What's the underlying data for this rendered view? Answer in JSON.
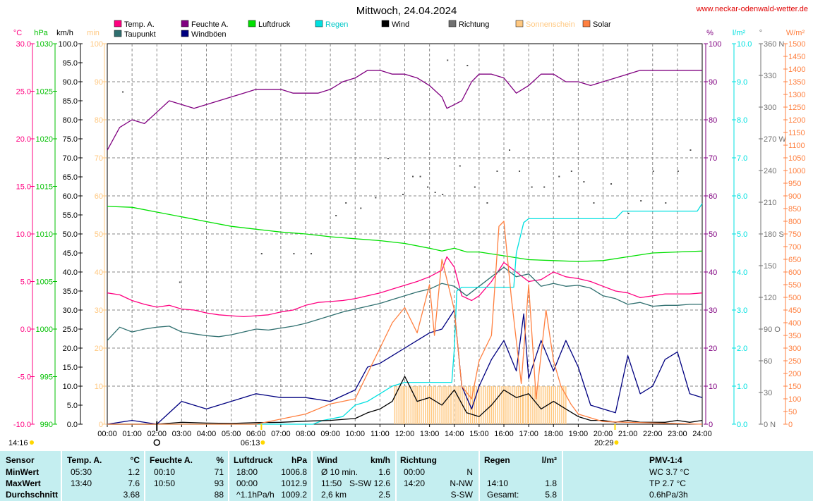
{
  "title": "Mittwoch, 24.04.2024",
  "site": "www.neckar-odenwald-wetter.de",
  "axis_units": {
    "temp": "°C",
    "pressure": "hPa",
    "wind": "km/h",
    "sun": "min",
    "humidity": "%",
    "rain": "l/m²",
    "direction": "°",
    "solar": "W/m²"
  },
  "legend": [
    {
      "label": "Temp. A.",
      "color": "#ff0080"
    },
    {
      "label": "Taupunkt",
      "color": "#2f6f6f"
    },
    {
      "label": "Feuchte A.",
      "color": "#800080"
    },
    {
      "label": "Windböen",
      "color": "#000080"
    },
    {
      "label": "Luftdruck",
      "color": "#00e000"
    },
    {
      "label": "Regen",
      "color": "#00e0e0"
    },
    {
      "label": "Wind",
      "color": "#000000"
    },
    {
      "label": "Richtung",
      "color": "#707070"
    },
    {
      "label": "Sonnenschein",
      "color": "#ffc880"
    },
    {
      "label": "Solar",
      "color": "#ff8040"
    }
  ],
  "sun": {
    "sunrise": "06:13",
    "sunset": "20:29",
    "sunshine_duration": "14:16"
  },
  "chart_data": {
    "type": "line",
    "title": "Mittwoch, 24.04.2024",
    "x_ticks": [
      "00:00",
      "01:00",
      "02:00",
      "03:00",
      "04:00",
      "05:00",
      "06:00",
      "07:00",
      "08:00",
      "09:00",
      "10:00",
      "11:00",
      "12:00",
      "13:00",
      "14:00",
      "15:00",
      "16:00",
      "17:00",
      "18:00",
      "19:00",
      "20:00",
      "21:00",
      "22:00",
      "23:00",
      "24:00"
    ],
    "axes": {
      "temp": {
        "min": -10,
        "max": 30,
        "ticks": [
          "-10.0",
          "-5.0",
          "0.0",
          "5.0",
          "10.0",
          "15.0",
          "20.0",
          "25.0",
          "30.0"
        ]
      },
      "pressure": {
        "min": 990,
        "max": 1030,
        "ticks": [
          "990",
          "995",
          "1000",
          "1005",
          "1010",
          "1015",
          "1020",
          "1025",
          "1030"
        ]
      },
      "wind": {
        "min": 0,
        "max": 100,
        "ticks": [
          "0.0",
          "5.0",
          "10.0",
          "15.0",
          "20.0",
          "25.0",
          "30.0",
          "35.0",
          "40.0",
          "45.0",
          "50.0",
          "55.0",
          "60.0",
          "65.0",
          "70.0",
          "75.0",
          "80.0",
          "85.0",
          "90.0",
          "95.0",
          "100.0"
        ]
      },
      "sun": {
        "min": 0,
        "max": 100,
        "ticks": [
          "0",
          "10",
          "20",
          "30",
          "40",
          "50",
          "60",
          "70",
          "80",
          "90",
          "100"
        ]
      },
      "humidity": {
        "min": 0,
        "max": 100,
        "ticks": [
          "0",
          "10",
          "20",
          "30",
          "40",
          "50",
          "60",
          "70",
          "80",
          "90",
          "100"
        ]
      },
      "rain": {
        "min": 0,
        "max": 10,
        "ticks": [
          "0.0",
          "1.0",
          "2.0",
          "3.0",
          "4.0",
          "5.0",
          "6.0",
          "7.0",
          "8.0",
          "9.0",
          "10.0"
        ]
      },
      "direction": {
        "min": 0,
        "max": 360,
        "ticks": [
          "0 N",
          "30",
          "60",
          "90 O",
          "120",
          "150",
          "180 S",
          "210",
          "240",
          "270 W",
          "300",
          "330",
          "360 N"
        ]
      },
      "solar": {
        "min": 0,
        "max": 1500,
        "ticks": [
          "0",
          "50",
          "100",
          "150",
          "200",
          "250",
          "300",
          "350",
          "400",
          "450",
          "500",
          "550",
          "600",
          "650",
          "700",
          "750",
          "800",
          "850",
          "900",
          "950",
          "1000",
          "1050",
          "1100",
          "1150",
          "1200",
          "1250",
          "1300",
          "1350",
          "1400",
          "1450",
          "1500"
        ]
      }
    },
    "series": [
      {
        "name": "Temp. A.",
        "axis": "temp",
        "x": [
          0,
          0.5,
          1,
          1.5,
          2,
          2.5,
          3,
          3.5,
          4,
          4.5,
          5,
          5.5,
          6,
          6.5,
          7,
          7.5,
          8,
          8.5,
          9,
          9.5,
          10,
          10.5,
          11,
          11.5,
          12,
          12.5,
          13,
          13.5,
          13.7,
          14,
          14.3,
          14.7,
          15,
          15.5,
          16,
          16.5,
          17,
          17.5,
          18,
          18.5,
          19,
          19.5,
          20,
          20.5,
          21,
          21.5,
          22,
          22.5,
          23,
          23.5,
          24
        ],
        "y": [
          3.8,
          3.6,
          3.0,
          2.6,
          2.3,
          2.5,
          2.1,
          2.0,
          1.7,
          1.5,
          1.4,
          1.3,
          1.4,
          1.5,
          1.8,
          2.0,
          2.5,
          2.8,
          2.9,
          3.0,
          3.2,
          3.5,
          3.8,
          4.2,
          4.6,
          5.0,
          5.5,
          6.2,
          7.6,
          6.5,
          3.5,
          3.0,
          3.5,
          5.0,
          7.0,
          6.0,
          5.0,
          5.2,
          6.0,
          5.5,
          5.3,
          5.0,
          4.5,
          4.0,
          3.8,
          3.3,
          3.5,
          3.7,
          3.7,
          3.7,
          3.8
        ]
      },
      {
        "name": "Taupunkt",
        "axis": "temp",
        "x": [
          0,
          0.5,
          1,
          1.5,
          2,
          2.5,
          3,
          3.5,
          4,
          4.5,
          5,
          5.5,
          6,
          6.5,
          7,
          7.5,
          8,
          8.5,
          9,
          9.5,
          10,
          10.5,
          11,
          11.5,
          12,
          12.5,
          13,
          13.5,
          14,
          14.5,
          15,
          15.5,
          16,
          16.5,
          17,
          17.5,
          18,
          18.5,
          19,
          19.5,
          20,
          20.5,
          21,
          21.5,
          22,
          22.5,
          23,
          23.5,
          24
        ],
        "y": [
          -1.2,
          0.2,
          -0.3,
          0.0,
          0.2,
          0.3,
          -0.3,
          -0.5,
          -0.7,
          -0.8,
          -0.6,
          -0.3,
          0.0,
          -0.1,
          0.1,
          0.3,
          0.6,
          1.0,
          1.4,
          1.8,
          2.1,
          2.4,
          2.7,
          3.1,
          3.5,
          3.9,
          4.2,
          4.8,
          4.5,
          3.5,
          4.5,
          5.5,
          6.5,
          5.5,
          5.8,
          4.5,
          4.8,
          4.5,
          4.6,
          4.3,
          3.5,
          3.2,
          2.6,
          2.8,
          2.4,
          2.5,
          2.5,
          2.6,
          2.6
        ]
      },
      {
        "name": "Feuchte A.",
        "axis": "humidity",
        "x": [
          0,
          0.5,
          1,
          1.5,
          2,
          2.5,
          3,
          3.5,
          4,
          4.5,
          5,
          5.5,
          6,
          6.5,
          7,
          7.5,
          8,
          8.5,
          9,
          9.5,
          10,
          10.5,
          11,
          11.5,
          12,
          12.5,
          13,
          13.5,
          13.7,
          14,
          14.3,
          14.7,
          15,
          15.5,
          16,
          16.5,
          17,
          17.5,
          18,
          18.5,
          19,
          19.5,
          20,
          20.5,
          21,
          21.5,
          22,
          22.5,
          23,
          23.5,
          24
        ],
        "y": [
          72,
          78,
          80,
          79,
          82,
          85,
          84,
          83,
          84,
          85,
          86,
          87,
          88,
          88,
          88,
          87,
          87,
          87,
          88,
          90,
          91,
          93,
          93,
          92,
          92,
          91,
          89,
          86,
          83,
          84,
          85,
          90,
          92,
          92,
          91,
          87,
          89,
          92,
          92,
          90,
          90,
          89,
          90,
          91,
          92,
          93,
          93,
          93,
          93,
          93,
          93
        ]
      },
      {
        "name": "Luftdruck",
        "axis": "pressure",
        "x": [
          0,
          1,
          2,
          3,
          4,
          5,
          6,
          7,
          8,
          9,
          10,
          11,
          12,
          13,
          13.5,
          14,
          14.5,
          15,
          16,
          17,
          18,
          19,
          20,
          21,
          22,
          23,
          24
        ],
        "y": [
          1012.9,
          1012.8,
          1012.3,
          1011.8,
          1011.3,
          1010.8,
          1010.5,
          1010.2,
          1010.0,
          1009.7,
          1009.5,
          1009.3,
          1009.0,
          1008.5,
          1008.2,
          1008.5,
          1008.1,
          1008.1,
          1007.7,
          1007.3,
          1007.2,
          1007.1,
          1007.2,
          1007.6,
          1008.0,
          1008.1,
          1008.2
        ]
      },
      {
        "name": "Regen",
        "axis": "rain",
        "x": [
          0,
          8.3,
          8.7,
          9.5,
          10,
          10.5,
          11,
          11.5,
          12,
          13,
          13.9,
          14,
          14.1,
          14.3,
          15,
          16.4,
          16.5,
          16.8,
          17,
          18,
          19,
          20,
          20.5,
          20.8,
          21,
          22,
          23,
          23.8,
          24
        ],
        "y": [
          0,
          0,
          0.1,
          0.2,
          0.5,
          0.6,
          0.8,
          1.0,
          1.1,
          1.1,
          1.1,
          2.0,
          3.5,
          3.6,
          3.6,
          3.6,
          4.5,
          5.3,
          5.4,
          5.4,
          5.4,
          5.4,
          5.4,
          5.6,
          5.6,
          5.6,
          5.6,
          5.6,
          5.8
        ]
      },
      {
        "name": "Wind",
        "axis": "wind",
        "x": [
          0,
          1,
          2,
          3,
          4,
          5,
          6,
          7,
          8,
          9,
          10,
          10.5,
          11,
          11.5,
          12,
          12.5,
          13,
          13.5,
          14,
          14.5,
          15,
          15.5,
          16,
          16.5,
          17,
          17.5,
          18,
          18.5,
          19,
          19.5,
          20,
          20.5,
          21,
          21.5,
          22,
          22.5,
          23,
          23.5,
          24
        ],
        "y": [
          0,
          0,
          0,
          0.5,
          0.3,
          0.2,
          0.4,
          0.5,
          0.8,
          1.0,
          1.5,
          3.0,
          4.0,
          6.0,
          12.6,
          6.0,
          7.0,
          5.0,
          9.0,
          3.0,
          2.0,
          5.0,
          9.0,
          7.0,
          8.0,
          4.0,
          6.0,
          4.0,
          2.0,
          1.0,
          1.0,
          0.5,
          1.0,
          0.5,
          0.5,
          0.5,
          1.0,
          0.5,
          1.0
        ]
      },
      {
        "name": "Windböen",
        "axis": "wind",
        "x": [
          0,
          1,
          2,
          3,
          4,
          5,
          6,
          7,
          8,
          9,
          10,
          10.5,
          11,
          11.5,
          12,
          12.5,
          13,
          13.5,
          14,
          14.3,
          14.7,
          15,
          15.5,
          16,
          16.5,
          16.8,
          17,
          17.5,
          18,
          18.5,
          19,
          19.5,
          20,
          20.5,
          21,
          21.5,
          22,
          22.5,
          23,
          23.5,
          24
        ],
        "y": [
          0,
          1,
          0,
          6,
          4,
          6,
          8,
          7,
          7,
          6,
          9,
          15,
          16,
          18,
          20,
          22,
          24,
          25,
          30,
          10,
          4,
          10,
          17,
          22,
          14,
          29,
          12,
          22,
          14,
          22,
          15,
          5,
          4,
          3,
          18,
          8,
          10,
          17,
          19,
          8,
          7
        ]
      },
      {
        "name": "Solar",
        "axis": "solar",
        "x": [
          0,
          6,
          7,
          8,
          9,
          10,
          10.5,
          11,
          11.5,
          12,
          12.5,
          13,
          13.2,
          13.5,
          14,
          14.3,
          14.7,
          15,
          15.5,
          15.8,
          16,
          16.3,
          16.7,
          17,
          17.3,
          17.7,
          18,
          18.3,
          18.7,
          19,
          20,
          24
        ],
        "y": [
          0,
          0,
          20,
          40,
          80,
          100,
          200,
          300,
          400,
          460,
          360,
          550,
          350,
          650,
          450,
          150,
          100,
          250,
          350,
          780,
          800,
          500,
          160,
          550,
          100,
          450,
          250,
          150,
          80,
          40,
          10,
          0
        ]
      },
      {
        "name": "Sonnenschein",
        "axis": "sun",
        "x": [
          11.6,
          12,
          12.5,
          13,
          13.5,
          13.9,
          15,
          15.5,
          16,
          16.5,
          16.8,
          17,
          17.5,
          18,
          18.5
        ],
        "y": [
          10,
          10,
          10,
          10,
          10,
          10,
          10,
          10,
          10,
          10,
          10,
          10,
          10,
          10,
          10
        ]
      },
      {
        "name": "Richtung",
        "axis": "direction",
        "x": [
          0.6,
          2.9,
          6.2,
          7.5,
          8.2,
          9.2,
          9.6,
          10.2,
          10.8,
          11.3,
          11.9,
          12.3,
          12.6,
          12.9,
          13.2,
          13.5,
          13.7,
          14.2,
          14.5,
          14.8,
          15.3,
          15.7,
          16.2,
          16.6,
          17.1,
          17.6,
          18.2,
          18.7,
          19.2,
          19.6,
          20.3,
          21.0,
          21.5,
          22.0,
          22.5,
          23.0,
          23.5
        ],
        "y": [
          315,
          135,
          162,
          162,
          162,
          198,
          210,
          205,
          215,
          252,
          218,
          235,
          235,
          225,
          220,
          218,
          345,
          245,
          340,
          225,
          210,
          240,
          260,
          240,
          225,
          225,
          235,
          240,
          230,
          210,
          228,
          200,
          212,
          240,
          210,
          240,
          260
        ]
      }
    ]
  },
  "table": {
    "headers": {
      "sensor": "Sensor",
      "temp": "Temp. A.",
      "temp_unit": "°C",
      "hum": "Feuchte A.",
      "hum_unit": "%",
      "press": "Luftdruck",
      "press_unit": "hPa",
      "wind": "Wind",
      "wind_unit": "km/h",
      "dir": "Richtung",
      "rain": "Regen",
      "rain_unit": "l/m²",
      "pmv": "PMV-1:4"
    },
    "rows": [
      {
        "label": "MinWert",
        "t_time": "05:30",
        "t_val": "1.2",
        "h_time": "00:10",
        "h_val": "71",
        "p_time": "18:00",
        "p_val": "1006.8",
        "w_time": "Ø 10 min.",
        "w_val": "1.6",
        "d_time": "00:00",
        "d_val": "N",
        "r_time": "",
        "r_val": "",
        "pmv": "WC 3.7 °C"
      },
      {
        "label": "MaxWert",
        "t_time": "13:40",
        "t_val": "7.6",
        "h_time": "10:50",
        "h_val": "93",
        "p_time": "00:00",
        "p_val": "1012.9",
        "w_time": "11:50",
        "w_val": "S-SW 12.6",
        "d_time": "14:20",
        "d_val": "N-NW",
        "r_time": "14:10",
        "r_val": "1.8",
        "pmv": "TP 2.7 °C"
      },
      {
        "label": "Durchschnitt",
        "t_time": "",
        "t_val": "3.68",
        "h_time": "",
        "h_val": "88",
        "p_time": "^1.1hPa/h",
        "p_val": "1009.2",
        "w_time": "2,6 km",
        "w_val": "2.5",
        "d_time": "",
        "d_val": "S-SW",
        "r_time": "Gesamt:",
        "r_val": "5.8",
        "pmv": "0.6hPa/3h"
      }
    ]
  }
}
